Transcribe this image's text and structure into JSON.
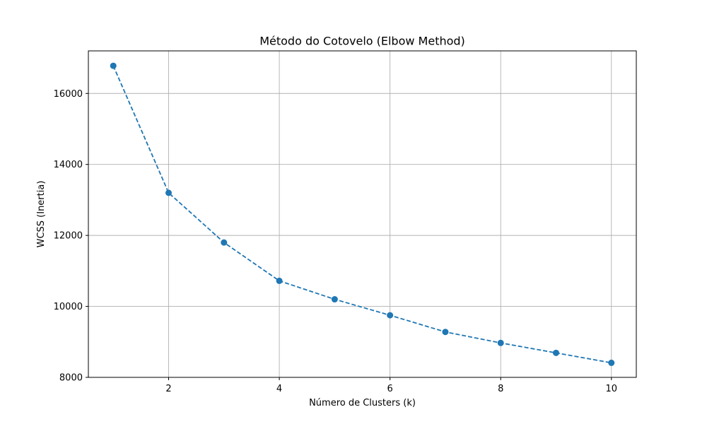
{
  "chart_data": {
    "type": "line",
    "title": "Método do Cotovelo (Elbow Method)",
    "xlabel": "Número de Clusters (k)",
    "ylabel": "WCSS (Inertia)",
    "x": [
      1,
      2,
      3,
      4,
      5,
      6,
      7,
      8,
      9,
      10
    ],
    "series": [
      {
        "values": [
          16780,
          13200,
          11800,
          10720,
          10200,
          9750,
          9280,
          8970,
          8690,
          8410
        ],
        "color": "#1f77b4",
        "line_style": "dashed",
        "marker": "circle"
      }
    ],
    "xlim": [
      0.55,
      10.45
    ],
    "ylim": [
      8000,
      17200
    ],
    "xticks": [
      2,
      4,
      6,
      8,
      10
    ],
    "yticks": [
      8000,
      10000,
      12000,
      14000,
      16000
    ],
    "grid": true
  }
}
